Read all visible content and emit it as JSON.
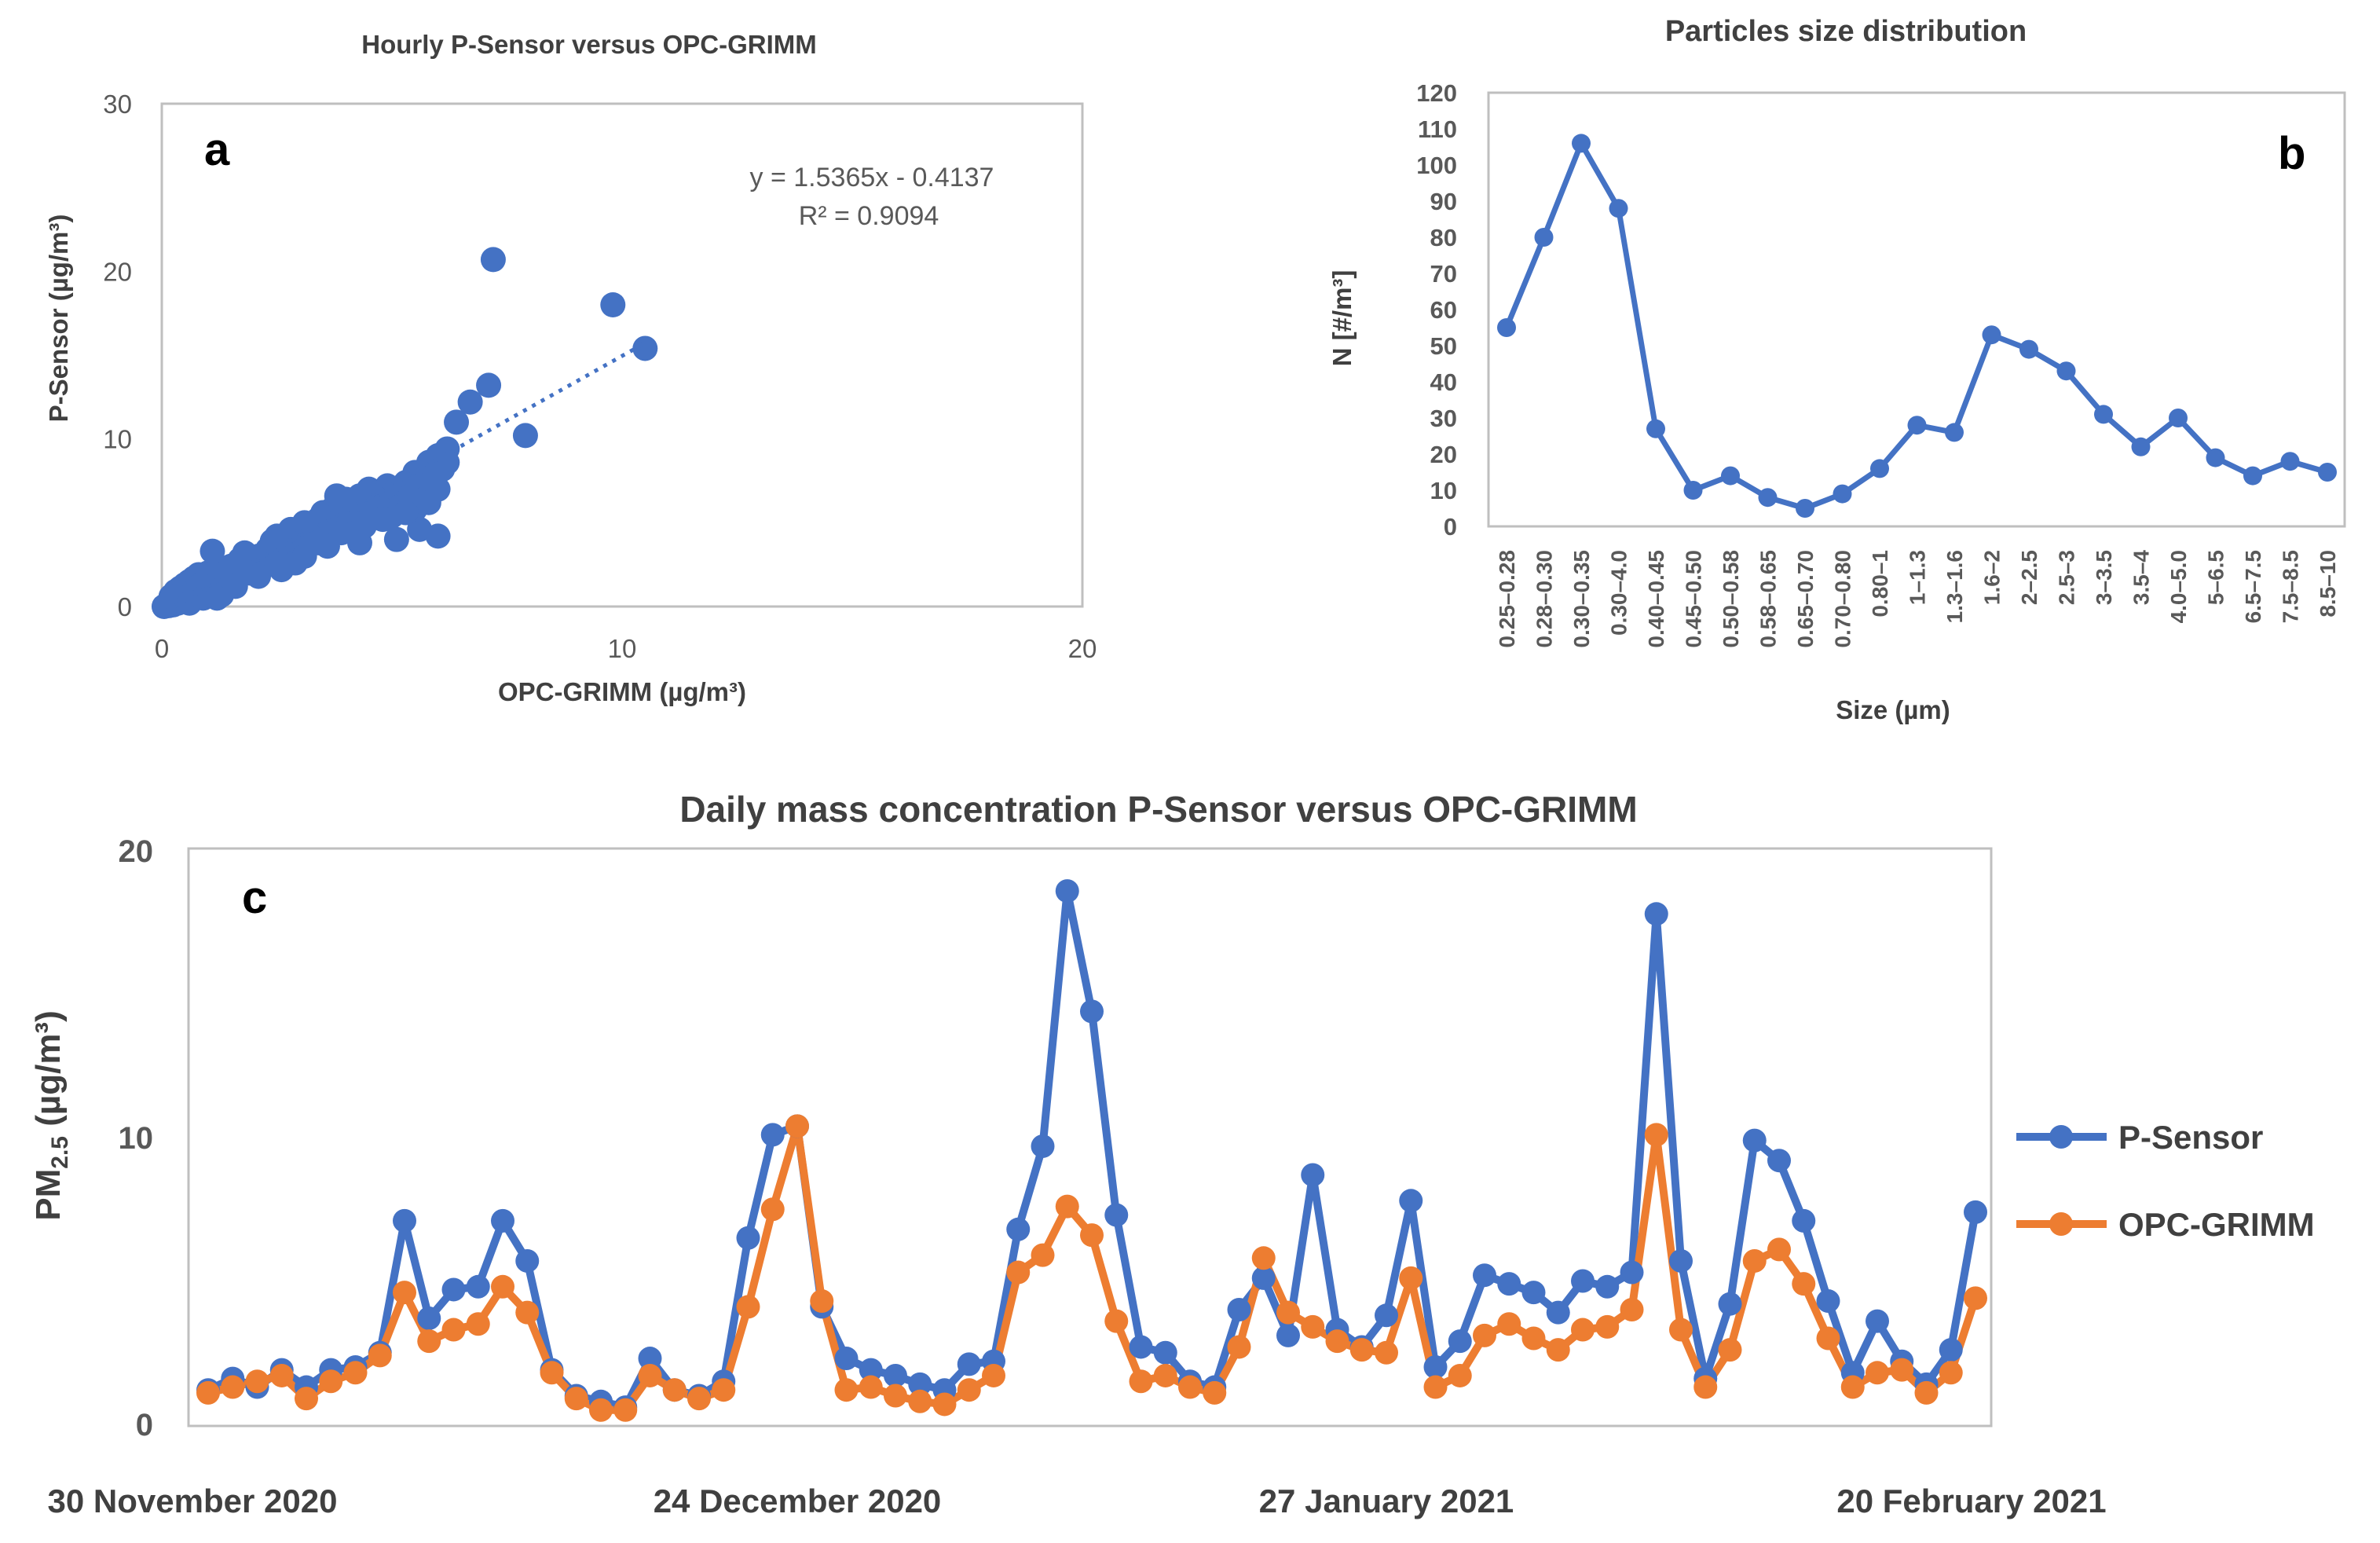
{
  "colors": {
    "blue": "#4472C4",
    "orange": "#ED7D31",
    "frame": "#BFBFBF",
    "text": "#595959"
  },
  "chart_data": [
    {
      "id": "a",
      "type": "scatter",
      "panel_letter": "a",
      "title": "Hourly P-Sensor versus OPC-GRIMM",
      "xlabel": "OPC-GRIMM (µg/m³)",
      "ylabel": "P-Sensor (µg/m³)",
      "xlim": [
        0,
        20
      ],
      "ylim": [
        0,
        30
      ],
      "xticks": [
        "0",
        "10",
        "20"
      ],
      "yticks": [
        "0",
        "10",
        "20",
        "30"
      ],
      "equation": "y = 1.5365x - 0.4137",
      "r2": "R² = 0.9094",
      "trendline": {
        "slope": 1.5365,
        "intercept": -0.4137,
        "x_range": [
          0.3,
          10.5
        ]
      },
      "points": [
        [
          0.05,
          0.0
        ],
        [
          0.1,
          0.1
        ],
        [
          0.15,
          0.05
        ],
        [
          0.2,
          0.2
        ],
        [
          0.25,
          0.1
        ],
        [
          0.3,
          0.4
        ],
        [
          0.35,
          0.2
        ],
        [
          0.4,
          0.6
        ],
        [
          0.45,
          0.3
        ],
        [
          0.5,
          0.8
        ],
        [
          0.3,
          0.9
        ],
        [
          0.4,
          1.1
        ],
        [
          0.5,
          1.3
        ],
        [
          0.6,
          1.5
        ],
        [
          0.7,
          1.7
        ],
        [
          0.8,
          1.9
        ],
        [
          0.6,
          0.6
        ],
        [
          0.7,
          0.9
        ],
        [
          0.8,
          1.2
        ],
        [
          0.9,
          1.4
        ],
        [
          1.0,
          0.8
        ],
        [
          1.0,
          1.2
        ],
        [
          1.0,
          1.6
        ],
        [
          1.0,
          2.0
        ],
        [
          1.1,
          1.0
        ],
        [
          1.2,
          1.4
        ],
        [
          1.3,
          1.8
        ],
        [
          1.2,
          2.4
        ],
        [
          1.1,
          3.3
        ],
        [
          1.4,
          2.0
        ],
        [
          1.5,
          1.4
        ],
        [
          1.5,
          2.4
        ],
        [
          1.6,
          1.8
        ],
        [
          1.7,
          2.8
        ],
        [
          1.8,
          2.2
        ],
        [
          1.8,
          3.2
        ],
        [
          2.0,
          2.0
        ],
        [
          2.0,
          2.8
        ],
        [
          2.1,
          3.0
        ],
        [
          2.2,
          2.4
        ],
        [
          2.3,
          3.4
        ],
        [
          2.4,
          2.8
        ],
        [
          2.5,
          3.6
        ],
        [
          2.5,
          4.2
        ],
        [
          2.6,
          3.0
        ],
        [
          2.7,
          4.0
        ],
        [
          2.8,
          3.4
        ],
        [
          2.8,
          4.6
        ],
        [
          3.0,
          3.8
        ],
        [
          3.0,
          4.4
        ],
        [
          3.1,
          5.0
        ],
        [
          3.2,
          4.0
        ],
        [
          3.3,
          4.8
        ],
        [
          3.4,
          5.2
        ],
        [
          3.5,
          4.4
        ],
        [
          3.5,
          5.6
        ],
        [
          3.6,
          4.8
        ],
        [
          3.7,
          5.8
        ],
        [
          3.8,
          5.0
        ],
        [
          3.9,
          6.0
        ],
        [
          4.0,
          5.4
        ],
        [
          4.0,
          6.4
        ],
        [
          4.1,
          4.6
        ],
        [
          4.2,
          5.8
        ],
        [
          4.3,
          6.6
        ],
        [
          4.4,
          5.0
        ],
        [
          4.5,
          6.2
        ],
        [
          4.5,
          7.0
        ],
        [
          4.6,
          5.6
        ],
        [
          4.7,
          6.8
        ],
        [
          4.8,
          6.0
        ],
        [
          4.9,
          7.2
        ],
        [
          5.0,
          6.4
        ],
        [
          5.0,
          5.4
        ],
        [
          5.1,
          7.0
        ],
        [
          5.2,
          6.0
        ],
        [
          5.3,
          7.4
        ],
        [
          5.4,
          6.6
        ],
        [
          5.5,
          8.0
        ],
        [
          5.5,
          5.8
        ],
        [
          5.6,
          7.2
        ],
        [
          5.7,
          6.4
        ],
        [
          5.8,
          8.6
        ],
        [
          5.9,
          7.6
        ],
        [
          6.0,
          9.0
        ],
        [
          6.0,
          7.0
        ],
        [
          6.1,
          8.2
        ],
        [
          6.2,
          9.4
        ],
        [
          5.6,
          4.6
        ],
        [
          5.1,
          4.0
        ],
        [
          4.3,
          3.8
        ],
        [
          3.6,
          3.6
        ],
        [
          2.9,
          2.6
        ],
        [
          1.9,
          2.0
        ],
        [
          6.0,
          4.2
        ],
        [
          6.4,
          11.0
        ],
        [
          6.7,
          12.2
        ],
        [
          7.1,
          13.2
        ],
        [
          7.2,
          20.7
        ],
        [
          7.9,
          10.2
        ],
        [
          9.8,
          18.0
        ],
        [
          10.5,
          15.4
        ],
        [
          0.2,
          0.6
        ],
        [
          0.6,
          0.2
        ],
        [
          0.9,
          0.5
        ],
        [
          1.3,
          0.7
        ],
        [
          1.6,
          1.2
        ],
        [
          2.1,
          1.8
        ],
        [
          2.6,
          2.2
        ],
        [
          3.1,
          3.0
        ],
        [
          3.4,
          3.8
        ],
        [
          3.9,
          4.4
        ],
        [
          4.4,
          4.8
        ],
        [
          4.8,
          5.2
        ],
        [
          5.3,
          5.6
        ],
        [
          5.8,
          6.2
        ],
        [
          6.2,
          8.6
        ],
        [
          1.2,
          0.5
        ],
        [
          2.4,
          3.9
        ],
        [
          3.8,
          6.6
        ]
      ]
    },
    {
      "id": "b",
      "type": "line",
      "panel_letter": "b",
      "title": "Particles size distribution",
      "xlabel": "Size (µm)",
      "ylabel": "N [#/m³]",
      "ylim": [
        0,
        120
      ],
      "yticks": [
        "0",
        "10",
        "20",
        "30",
        "40",
        "50",
        "60",
        "70",
        "80",
        "90",
        "100",
        "110",
        "120"
      ],
      "categories": [
        "0.25–0.28",
        "0.28–0.30",
        "0.30–0.35",
        "0.30–4.0",
        "0.40–0.45",
        "0.45–0.50",
        "0.50–0.58",
        "0.58–0.65",
        "0.65–0.70",
        "0.70–0.80",
        "0.80–1",
        "1–1.3",
        "1.3–1.6",
        "1.6–2",
        "2–2.5",
        "2.5–3",
        "3–3.5",
        "3.5–4",
        "4.0–5.0",
        "5–6.5",
        "6.5–7.5",
        "7.5–8.5",
        "8.5–10"
      ],
      "values": [
        55,
        80,
        106,
        88,
        27,
        10,
        14,
        8,
        5,
        9,
        16,
        28,
        26,
        53,
        49,
        43,
        31,
        22,
        30,
        19,
        14,
        18,
        15
      ]
    },
    {
      "id": "c",
      "type": "line",
      "panel_letter": "c",
      "title": "Daily mass concentration P-Sensor versus OPC-GRIMM",
      "ylabel": "PM",
      "ylabel_sub": "2.5",
      "ylabel_unit": " (µg/m³)",
      "ylim": [
        0,
        20
      ],
      "yticks": [
        "0",
        "10",
        "20"
      ],
      "date_labels": [
        "30 November 2020",
        "24 December 2020",
        "27 January 2021",
        "20 February 2021"
      ],
      "series": [
        {
          "name": "P-Sensor",
          "color": "#4472C4",
          "values": [
            1.2,
            1.6,
            1.3,
            1.9,
            1.3,
            1.9,
            2.0,
            2.5,
            7.1,
            3.7,
            4.7,
            4.8,
            7.1,
            5.7,
            1.9,
            1.0,
            0.8,
            0.6,
            2.3,
            1.2,
            1.0,
            1.5,
            6.5,
            10.1,
            10.4,
            4.1,
            2.3,
            1.9,
            1.7,
            1.4,
            1.2,
            2.1,
            2.2,
            6.8,
            9.7,
            18.6,
            14.4,
            7.3,
            2.7,
            2.5,
            1.5,
            1.3,
            4.0,
            5.1,
            3.1,
            8.7,
            3.3,
            2.7,
            3.8,
            7.8,
            2.0,
            2.9,
            5.2,
            4.9,
            4.6,
            3.9,
            5.0,
            4.8,
            5.3,
            17.8,
            5.7,
            1.6,
            4.2,
            9.9,
            9.2,
            7.1,
            4.3,
            1.8,
            3.6,
            2.2,
            1.4,
            2.6,
            7.4
          ]
        },
        {
          "name": "OPC-GRIMM",
          "color": "#ED7D31",
          "values": [
            1.1,
            1.3,
            1.5,
            1.7,
            0.9,
            1.5,
            1.8,
            2.4,
            4.6,
            2.9,
            3.3,
            3.5,
            4.8,
            3.9,
            1.8,
            0.9,
            0.5,
            0.5,
            1.7,
            1.2,
            0.9,
            1.2,
            4.1,
            7.5,
            10.4,
            4.3,
            1.2,
            1.3,
            1.0,
            0.8,
            0.7,
            1.2,
            1.7,
            5.3,
            5.9,
            7.6,
            6.6,
            3.6,
            1.5,
            1.7,
            1.3,
            1.1,
            2.7,
            5.8,
            3.9,
            3.4,
            2.9,
            2.6,
            2.5,
            5.1,
            1.3,
            1.7,
            3.1,
            3.5,
            3.0,
            2.6,
            3.3,
            3.4,
            4.0,
            10.1,
            3.3,
            1.3,
            2.6,
            5.7,
            6.1,
            4.9,
            3.0,
            1.3,
            1.8,
            1.9,
            1.1,
            1.8,
            4.4
          ]
        }
      ]
    }
  ]
}
